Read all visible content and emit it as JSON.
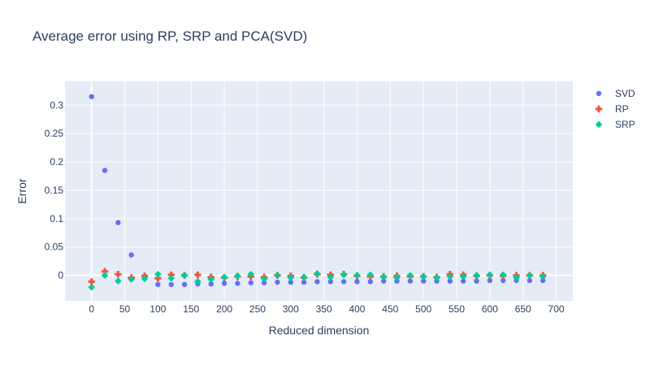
{
  "title": "Average error using RP, SRP and PCA(SVD)",
  "chart_data": {
    "type": "scatter",
    "title": "Average error using RP, SRP and PCA(SVD)",
    "xlabel": "Reduced dimension",
    "ylabel": "Error",
    "xlim": [
      -40,
      725
    ],
    "ylim": [
      -0.045,
      0.342
    ],
    "x_ticks": [
      0,
      50,
      100,
      150,
      200,
      250,
      300,
      350,
      400,
      450,
      500,
      550,
      600,
      650,
      700
    ],
    "y_ticks": [
      0,
      0.05,
      0.1,
      0.15,
      0.2,
      0.25,
      0.3
    ],
    "y_tick_labels": [
      "0",
      "0.05",
      "0.1",
      "0.15",
      "0.2",
      "0.25",
      "0.3"
    ],
    "grid": true,
    "legend": "top-right",
    "x": [
      0,
      20,
      40,
      60,
      80,
      100,
      120,
      140,
      160,
      180,
      200,
      220,
      240,
      260,
      280,
      300,
      320,
      340,
      360,
      380,
      400,
      420,
      440,
      460,
      480,
      500,
      520,
      540,
      560,
      580,
      600,
      620,
      640,
      660,
      680
    ],
    "series": [
      {
        "name": "SVD",
        "color": "#636efa",
        "marker": "circle",
        "values": [
          0.315,
          0.185,
          0.093,
          0.036,
          -0.002,
          -0.016,
          -0.016,
          -0.016,
          -0.015,
          -0.015,
          -0.014,
          -0.014,
          -0.013,
          -0.013,
          -0.012,
          -0.012,
          -0.012,
          -0.011,
          -0.011,
          -0.011,
          -0.011,
          -0.011,
          -0.01,
          -0.01,
          -0.01,
          -0.01,
          -0.01,
          -0.01,
          -0.01,
          -0.01,
          -0.009,
          -0.009,
          -0.009,
          -0.009,
          -0.009
        ]
      },
      {
        "name": "RP",
        "color": "#ef553b",
        "marker": "cross",
        "values": [
          -0.011,
          0.007,
          0.002,
          -0.004,
          -0.001,
          -0.005,
          0.001,
          0.0,
          0.001,
          -0.003,
          -0.004,
          -0.002,
          -0.002,
          -0.003,
          0.0,
          -0.001,
          -0.004,
          0.002,
          0.001,
          0.002,
          -0.001,
          -0.002,
          -0.002,
          -0.001,
          -0.002,
          -0.002,
          -0.003,
          0.002,
          0.001,
          -0.001,
          0.0,
          -0.001,
          0.0,
          0.0,
          0.0
        ]
      },
      {
        "name": "SRP",
        "color": "#00cc96",
        "marker": "diamond",
        "values": [
          -0.021,
          0.0,
          -0.01,
          -0.007,
          -0.006,
          0.002,
          -0.005,
          0.0,
          -0.011,
          -0.007,
          -0.003,
          -0.001,
          0.002,
          -0.006,
          0.0,
          -0.004,
          -0.003,
          0.003,
          -0.003,
          0.001,
          0.0,
          0.001,
          -0.003,
          -0.004,
          0.0,
          -0.002,
          -0.004,
          -0.002,
          -0.002,
          0.0,
          0.001,
          0.001,
          -0.004,
          0.0,
          -0.002
        ]
      }
    ]
  }
}
